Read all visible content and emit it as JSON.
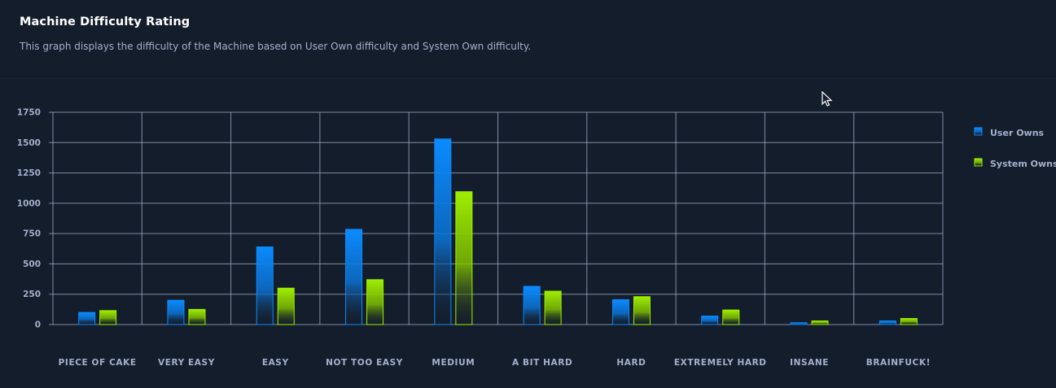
{
  "header": {
    "title": "Machine Difficulty Rating",
    "subtitle": "This graph displays the difficulty of the Machine based on User Own difficulty and System Own difficulty."
  },
  "colors": {
    "background": "#141d2b",
    "grid": "#a4b1cd",
    "tick_text": "#a4b1cd",
    "user_owns": "#0b8bff",
    "system_owns": "#9fef00"
  },
  "chart_data": {
    "type": "bar",
    "categories": [
      "PIECE OF CAKE",
      "VERY EASY",
      "EASY",
      "NOT TOO EASY",
      "MEDIUM",
      "A BIT HARD",
      "HARD",
      "EXTREMELY HARD",
      "INSANE",
      "BRAINFUCK!"
    ],
    "series": [
      {
        "name": "User Owns",
        "values": [
          100,
          200,
          640,
          785,
          1530,
          315,
          205,
          70,
          15,
          30
        ]
      },
      {
        "name": "System Owns",
        "values": [
          115,
          125,
          300,
          370,
          1095,
          275,
          230,
          120,
          30,
          50
        ]
      }
    ],
    "yticks": [
      0,
      250,
      500,
      750,
      1000,
      1250,
      1500,
      1750
    ],
    "ylim": [
      0,
      1750
    ],
    "grid": true,
    "legend_position": "right"
  }
}
